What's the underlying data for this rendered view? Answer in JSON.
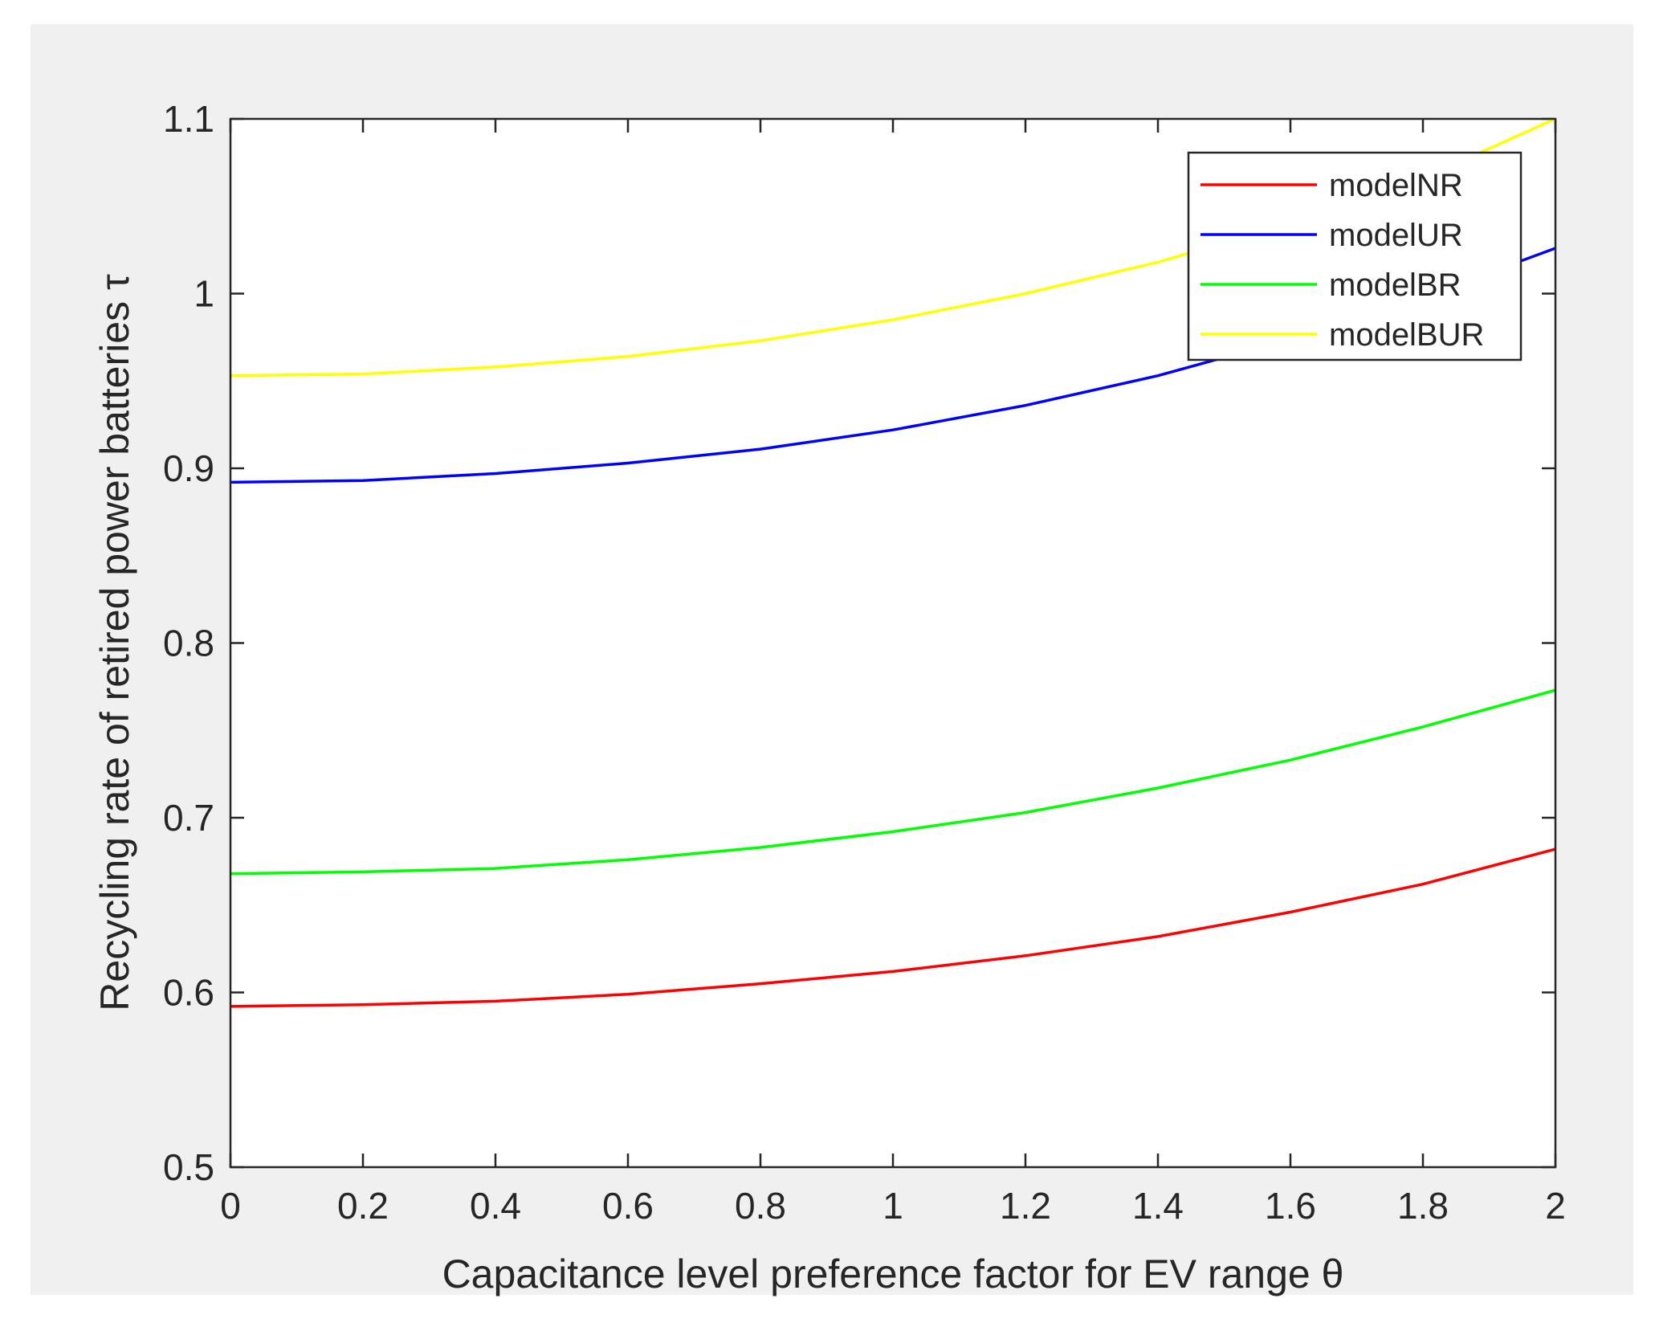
{
  "chart_data": {
    "type": "line",
    "title": "",
    "xlabel": "Capacitance level preference factor for EV range θ",
    "ylabel": "Recycling rate of retired power batteries τ",
    "xlim": [
      0,
      2
    ],
    "ylim": [
      0.5,
      1.1
    ],
    "xticks": [
      0,
      0.2,
      0.4,
      0.6,
      0.8,
      1,
      1.2,
      1.4,
      1.6,
      1.8,
      2
    ],
    "xtick_labels": [
      "0",
      "0.2",
      "0.4",
      "0.6",
      "0.8",
      "1",
      "1.2",
      "1.4",
      "1.6",
      "1.8",
      "2"
    ],
    "yticks": [
      0.5,
      0.6,
      0.7,
      0.8,
      0.9,
      1.0,
      1.1
    ],
    "ytick_labels": [
      "0.5",
      "0.6",
      "0.7",
      "0.8",
      "0.9",
      "1",
      "1.1"
    ],
    "grid": false,
    "legend_position": "top-right",
    "x": [
      0,
      0.2,
      0.4,
      0.6,
      0.8,
      1.0,
      1.2,
      1.4,
      1.6,
      1.8,
      2.0
    ],
    "series": [
      {
        "name": "modelNR",
        "color": "#ff0000",
        "values": [
          0.592,
          0.593,
          0.595,
          0.599,
          0.605,
          0.612,
          0.621,
          0.632,
          0.646,
          0.662,
          0.682
        ]
      },
      {
        "name": "modelUR",
        "color": "#0000ff",
        "values": [
          0.892,
          0.893,
          0.897,
          0.903,
          0.911,
          0.922,
          0.936,
          0.953,
          0.974,
          0.998,
          1.026
        ]
      },
      {
        "name": "modelBR",
        "color": "#00ff00",
        "values": [
          0.668,
          0.669,
          0.671,
          0.676,
          0.683,
          0.692,
          0.703,
          0.717,
          0.733,
          0.752,
          0.773
        ]
      },
      {
        "name": "modelBUR",
        "color": "#ffff00",
        "values": [
          0.953,
          0.954,
          0.958,
          0.964,
          0.973,
          0.985,
          1.0,
          1.018,
          1.04,
          1.066,
          1.1
        ]
      }
    ]
  }
}
